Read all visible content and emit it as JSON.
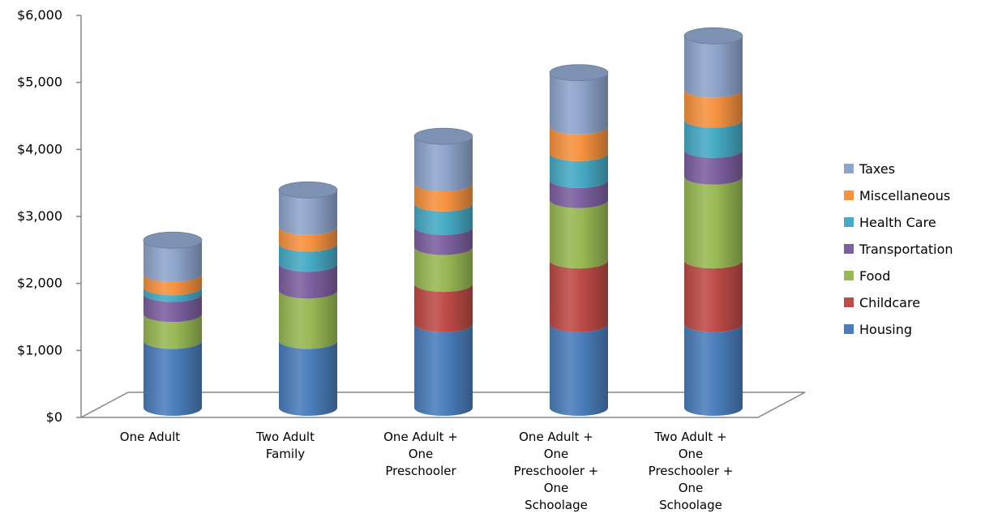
{
  "chart_data": {
    "type": "bar",
    "stacked": true,
    "style": "3d-cylinder",
    "categories": [
      [
        "One Adult"
      ],
      [
        "Two Adult",
        "Family"
      ],
      [
        "One Adult +",
        "One",
        "Preschooler"
      ],
      [
        "One Adult +",
        "One",
        "Preschooler +",
        "One",
        "Schoolage"
      ],
      [
        "Two Adult +",
        "One",
        "Preschooler +",
        "One",
        "Schoolage"
      ]
    ],
    "series": [
      {
        "name": "Housing",
        "color": "#4A7EBB",
        "values": [
          1000,
          1000,
          1250,
          1250,
          1250
        ]
      },
      {
        "name": "Childcare",
        "color": "#BE4B48",
        "values": [
          0,
          0,
          600,
          950,
          950
        ]
      },
      {
        "name": "Food",
        "color": "#98B954",
        "values": [
          400,
          750,
          550,
          900,
          1250
        ]
      },
      {
        "name": "Transportation",
        "color": "#7D60A0",
        "values": [
          300,
          400,
          300,
          300,
          400
        ]
      },
      {
        "name": "Health Care",
        "color": "#46AAC5",
        "values": [
          100,
          300,
          350,
          400,
          450
        ]
      },
      {
        "name": "Miscellaneous",
        "color": "#F69240",
        "values": [
          200,
          250,
          300,
          400,
          450
        ]
      },
      {
        "name": "Taxes",
        "color": "#8EA5CB",
        "values": [
          500,
          550,
          700,
          800,
          800
        ]
      }
    ],
    "y_ticks": [
      "$0",
      "$1,000",
      "$2,000",
      "$3,000",
      "$4,000",
      "$5,000",
      "$6,000"
    ],
    "ylim": [
      0,
      6000
    ],
    "legend_position": "right",
    "grid": false
  }
}
